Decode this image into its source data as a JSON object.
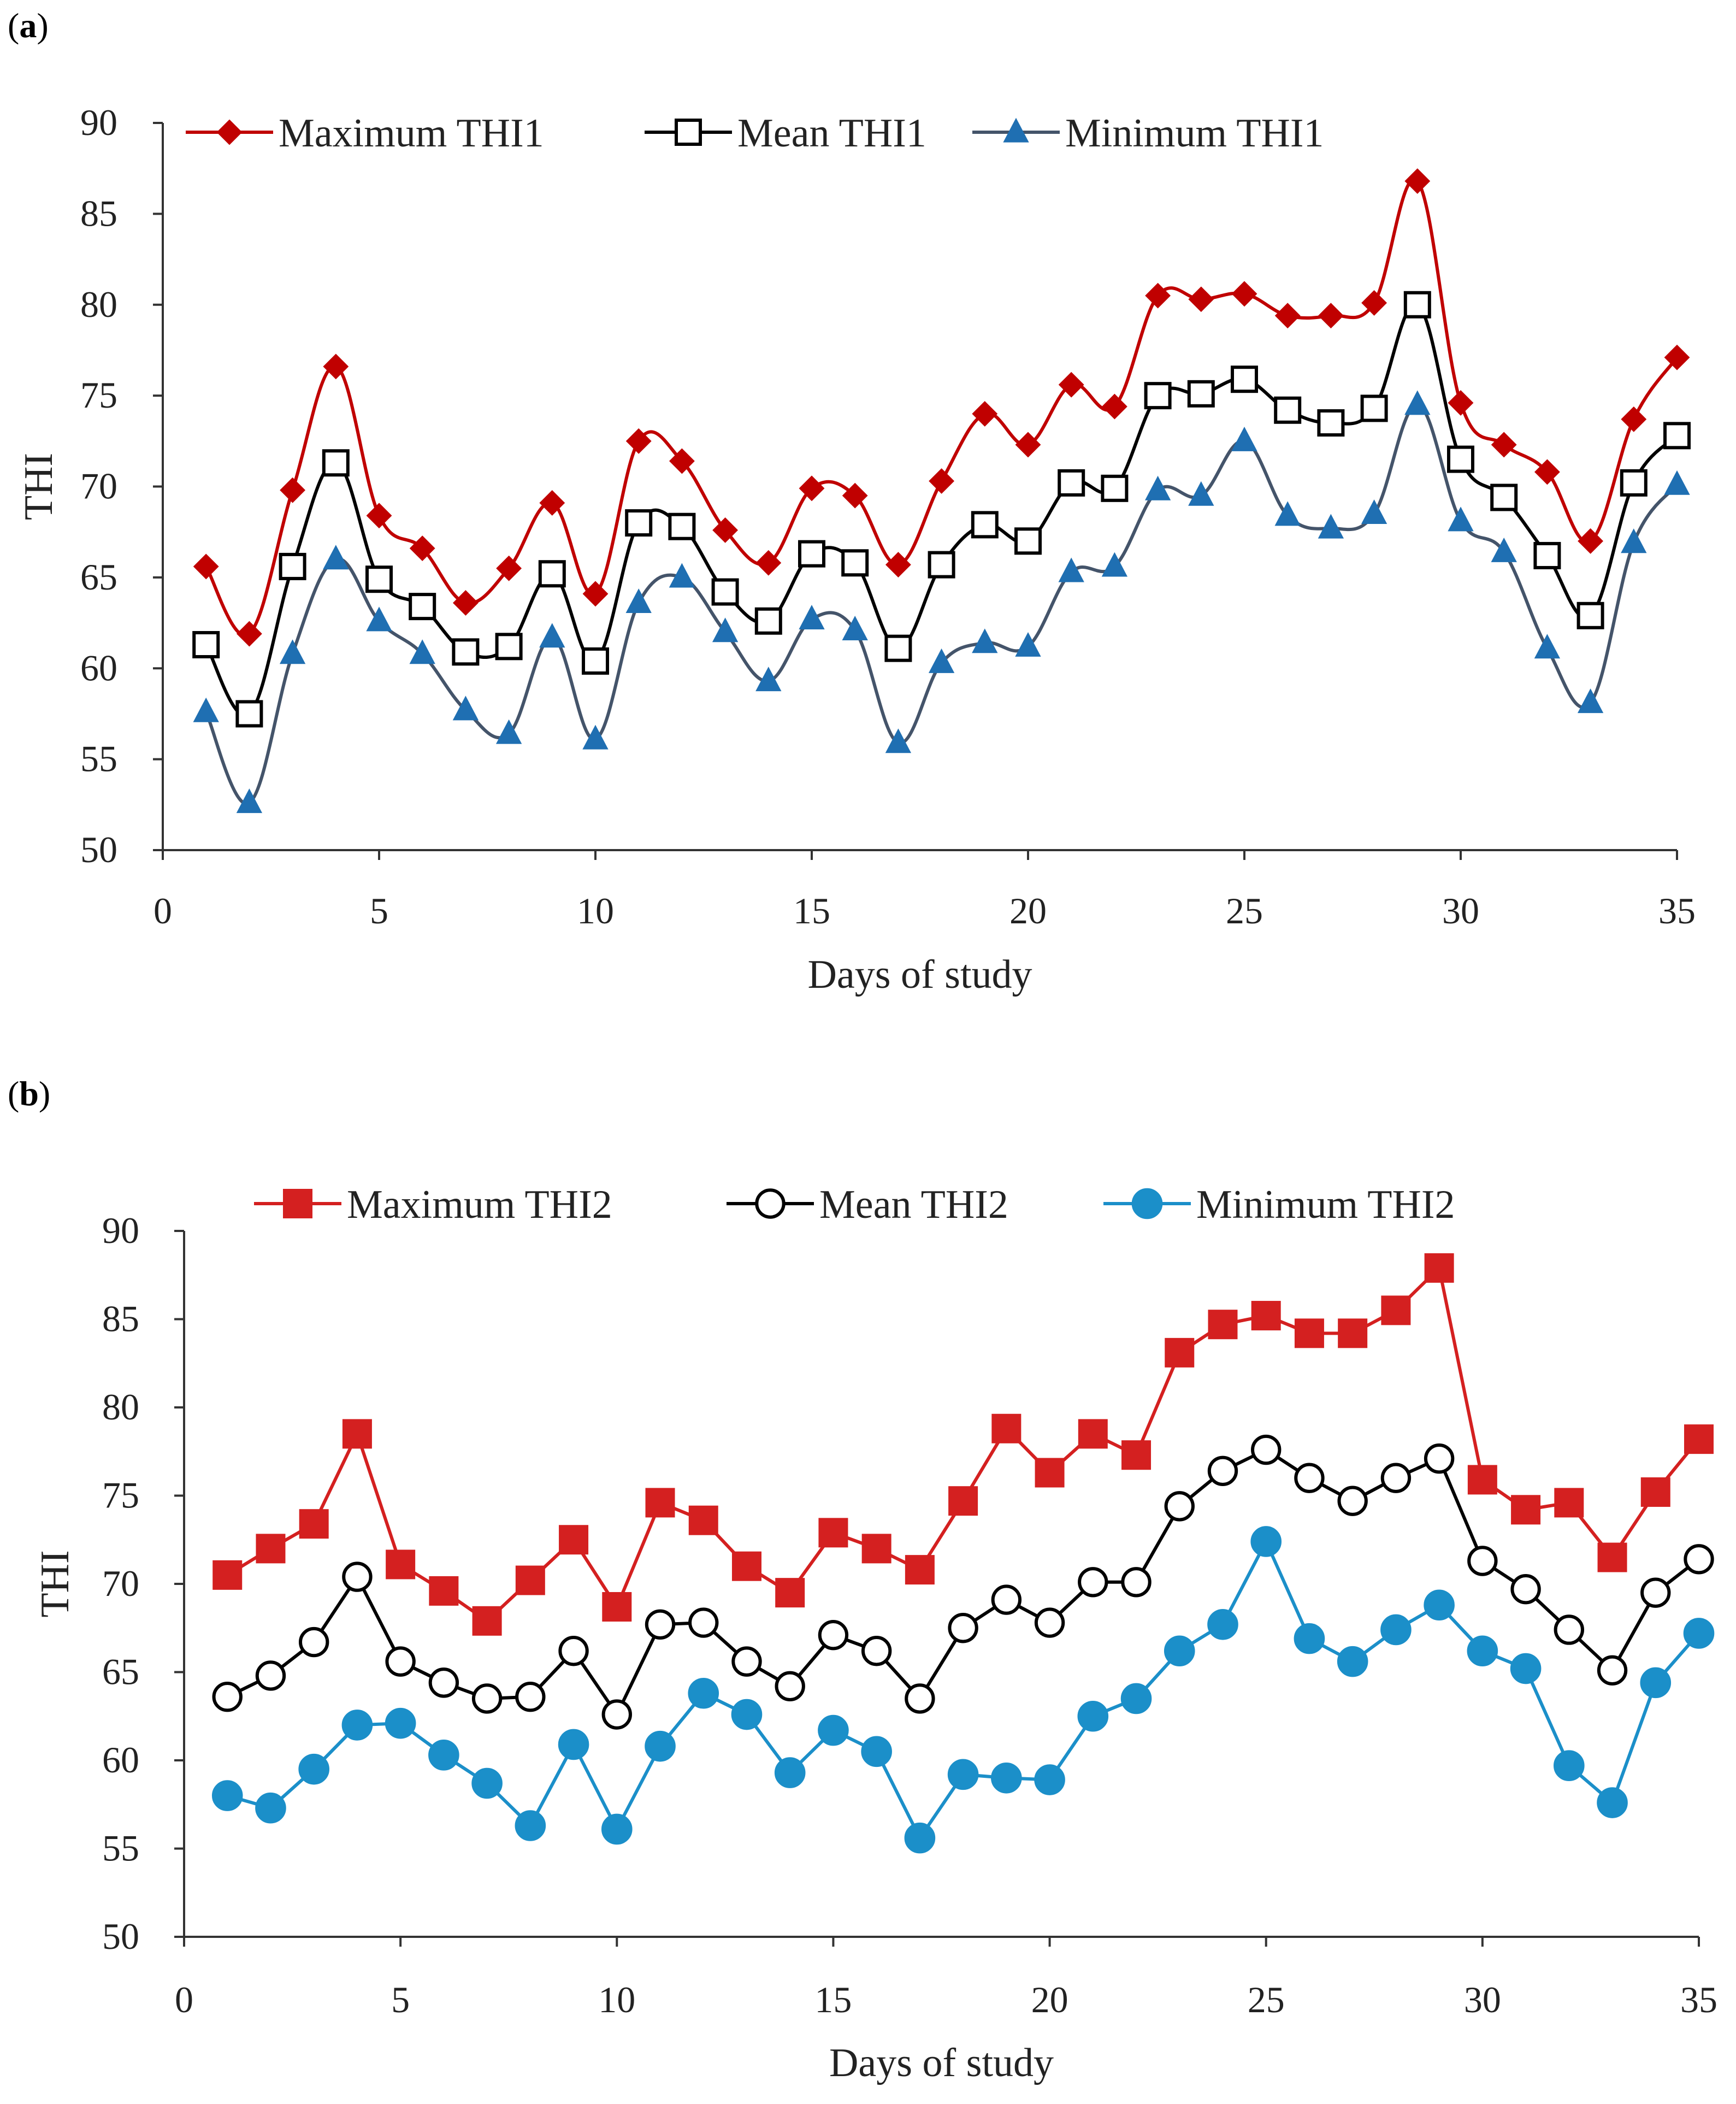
{
  "panels": [
    {
      "label": "a",
      "chart_data": {
        "type": "line",
        "title": "",
        "xlabel": "Days of study",
        "ylabel": "THI",
        "xlim": [
          0,
          35
        ],
        "ylim": [
          50,
          90
        ],
        "xticks": [
          0,
          5,
          10,
          15,
          20,
          25,
          30,
          35
        ],
        "yticks": [
          50,
          55,
          60,
          65,
          70,
          75,
          80,
          85,
          90
        ],
        "x": [
          1,
          2,
          3,
          4,
          5,
          6,
          7,
          8,
          9,
          10,
          11,
          12,
          13,
          14,
          15,
          16,
          17,
          18,
          19,
          20,
          21,
          22,
          23,
          24,
          25,
          26,
          27,
          28,
          29,
          30,
          31,
          32,
          33,
          34,
          35
        ],
        "legend_position": "top",
        "smooth": true,
        "series": [
          {
            "name": "Maximum THI1",
            "color": "#c00000",
            "marker": "diamond",
            "values": [
              65.6,
              61.9,
              69.8,
              76.6,
              68.4,
              66.6,
              63.6,
              65.5,
              69.1,
              64.1,
              72.5,
              71.4,
              67.6,
              65.8,
              69.9,
              69.5,
              65.7,
              70.3,
              74.0,
              72.3,
              75.6,
              74.4,
              80.5,
              80.3,
              80.6,
              79.4,
              79.4,
              80.1,
              86.8,
              74.6,
              72.3,
              70.8,
              67.0,
              73.7,
              77.1
            ]
          },
          {
            "name": "Mean THI1",
            "color": "#000000",
            "marker": "square-open",
            "values": [
              61.3,
              57.5,
              65.6,
              71.3,
              64.9,
              63.4,
              60.9,
              61.2,
              65.2,
              60.4,
              68.0,
              67.8,
              64.2,
              62.6,
              66.3,
              65.8,
              61.1,
              65.7,
              67.9,
              67.0,
              70.2,
              69.9,
              75.0,
              75.1,
              75.9,
              74.2,
              73.5,
              74.3,
              80.0,
              71.5,
              69.4,
              66.2,
              62.9,
              70.2,
              72.8
            ]
          },
          {
            "name": "Minimum THI1",
            "color": "#44546a",
            "marker": "triangle",
            "marker_fill": "#1f6fb2",
            "values": [
              57.6,
              52.6,
              60.8,
              66.0,
              62.6,
              60.8,
              57.7,
              56.4,
              61.7,
              56.1,
              63.6,
              65.0,
              62.0,
              59.3,
              62.7,
              62.1,
              55.9,
              60.3,
              61.4,
              61.2,
              65.3,
              65.6,
              69.8,
              69.5,
              72.5,
              68.4,
              67.7,
              68.5,
              74.5,
              68.1,
              66.4,
              61.1,
              58.1,
              66.9,
              70.1
            ]
          }
        ]
      }
    },
    {
      "label": "b",
      "chart_data": {
        "type": "line",
        "title": "",
        "xlabel": "Days of study",
        "ylabel": "THI",
        "xlim": [
          0,
          35
        ],
        "ylim": [
          50,
          90
        ],
        "xticks": [
          0,
          5,
          10,
          15,
          20,
          25,
          30,
          35
        ],
        "yticks": [
          50,
          55,
          60,
          65,
          70,
          75,
          80,
          85,
          90
        ],
        "x": [
          1,
          2,
          3,
          4,
          5,
          6,
          7,
          8,
          9,
          10,
          11,
          12,
          13,
          14,
          15,
          16,
          17,
          18,
          19,
          20,
          21,
          22,
          23,
          24,
          25,
          26,
          27,
          28,
          29,
          30,
          31,
          32,
          33,
          34,
          35
        ],
        "legend_position": "top",
        "smooth": false,
        "series": [
          {
            "name": "Maximum THI2",
            "color": "#d42020",
            "marker": "square",
            "values": [
              70.5,
              72.0,
              73.4,
              78.5,
              71.1,
              69.6,
              67.9,
              70.2,
              72.5,
              68.7,
              74.6,
              73.6,
              71.0,
              69.5,
              72.9,
              72.0,
              70.8,
              74.7,
              78.8,
              76.3,
              78.5,
              77.3,
              83.1,
              84.7,
              85.2,
              84.2,
              84.2,
              85.5,
              87.9,
              75.9,
              74.2,
              74.6,
              71.5,
              75.2,
              78.2
            ]
          },
          {
            "name": "Mean THI2",
            "color": "#000000",
            "marker": "circle-open",
            "values": [
              63.6,
              64.8,
              66.7,
              70.4,
              65.6,
              64.4,
              63.5,
              63.6,
              66.2,
              62.6,
              67.7,
              67.8,
              65.6,
              64.2,
              67.1,
              66.2,
              63.5,
              67.5,
              69.1,
              67.8,
              70.1,
              70.1,
              74.4,
              76.4,
              77.6,
              76.0,
              74.7,
              76.0,
              77.1,
              71.3,
              69.7,
              67.4,
              65.1,
              69.5,
              71.4
            ]
          },
          {
            "name": "Minimum THI2",
            "color": "#1b8fc9",
            "marker": "circle",
            "values": [
              58.0,
              57.3,
              59.5,
              62.0,
              62.1,
              60.3,
              58.7,
              56.3,
              60.9,
              56.1,
              60.8,
              63.8,
              62.6,
              59.3,
              61.7,
              60.5,
              55.6,
              59.2,
              59.0,
              58.9,
              62.5,
              63.5,
              66.2,
              67.7,
              72.4,
              66.9,
              65.6,
              67.4,
              68.8,
              66.2,
              65.2,
              59.7,
              57.6,
              64.4,
              67.2
            ]
          }
        ]
      }
    }
  ]
}
